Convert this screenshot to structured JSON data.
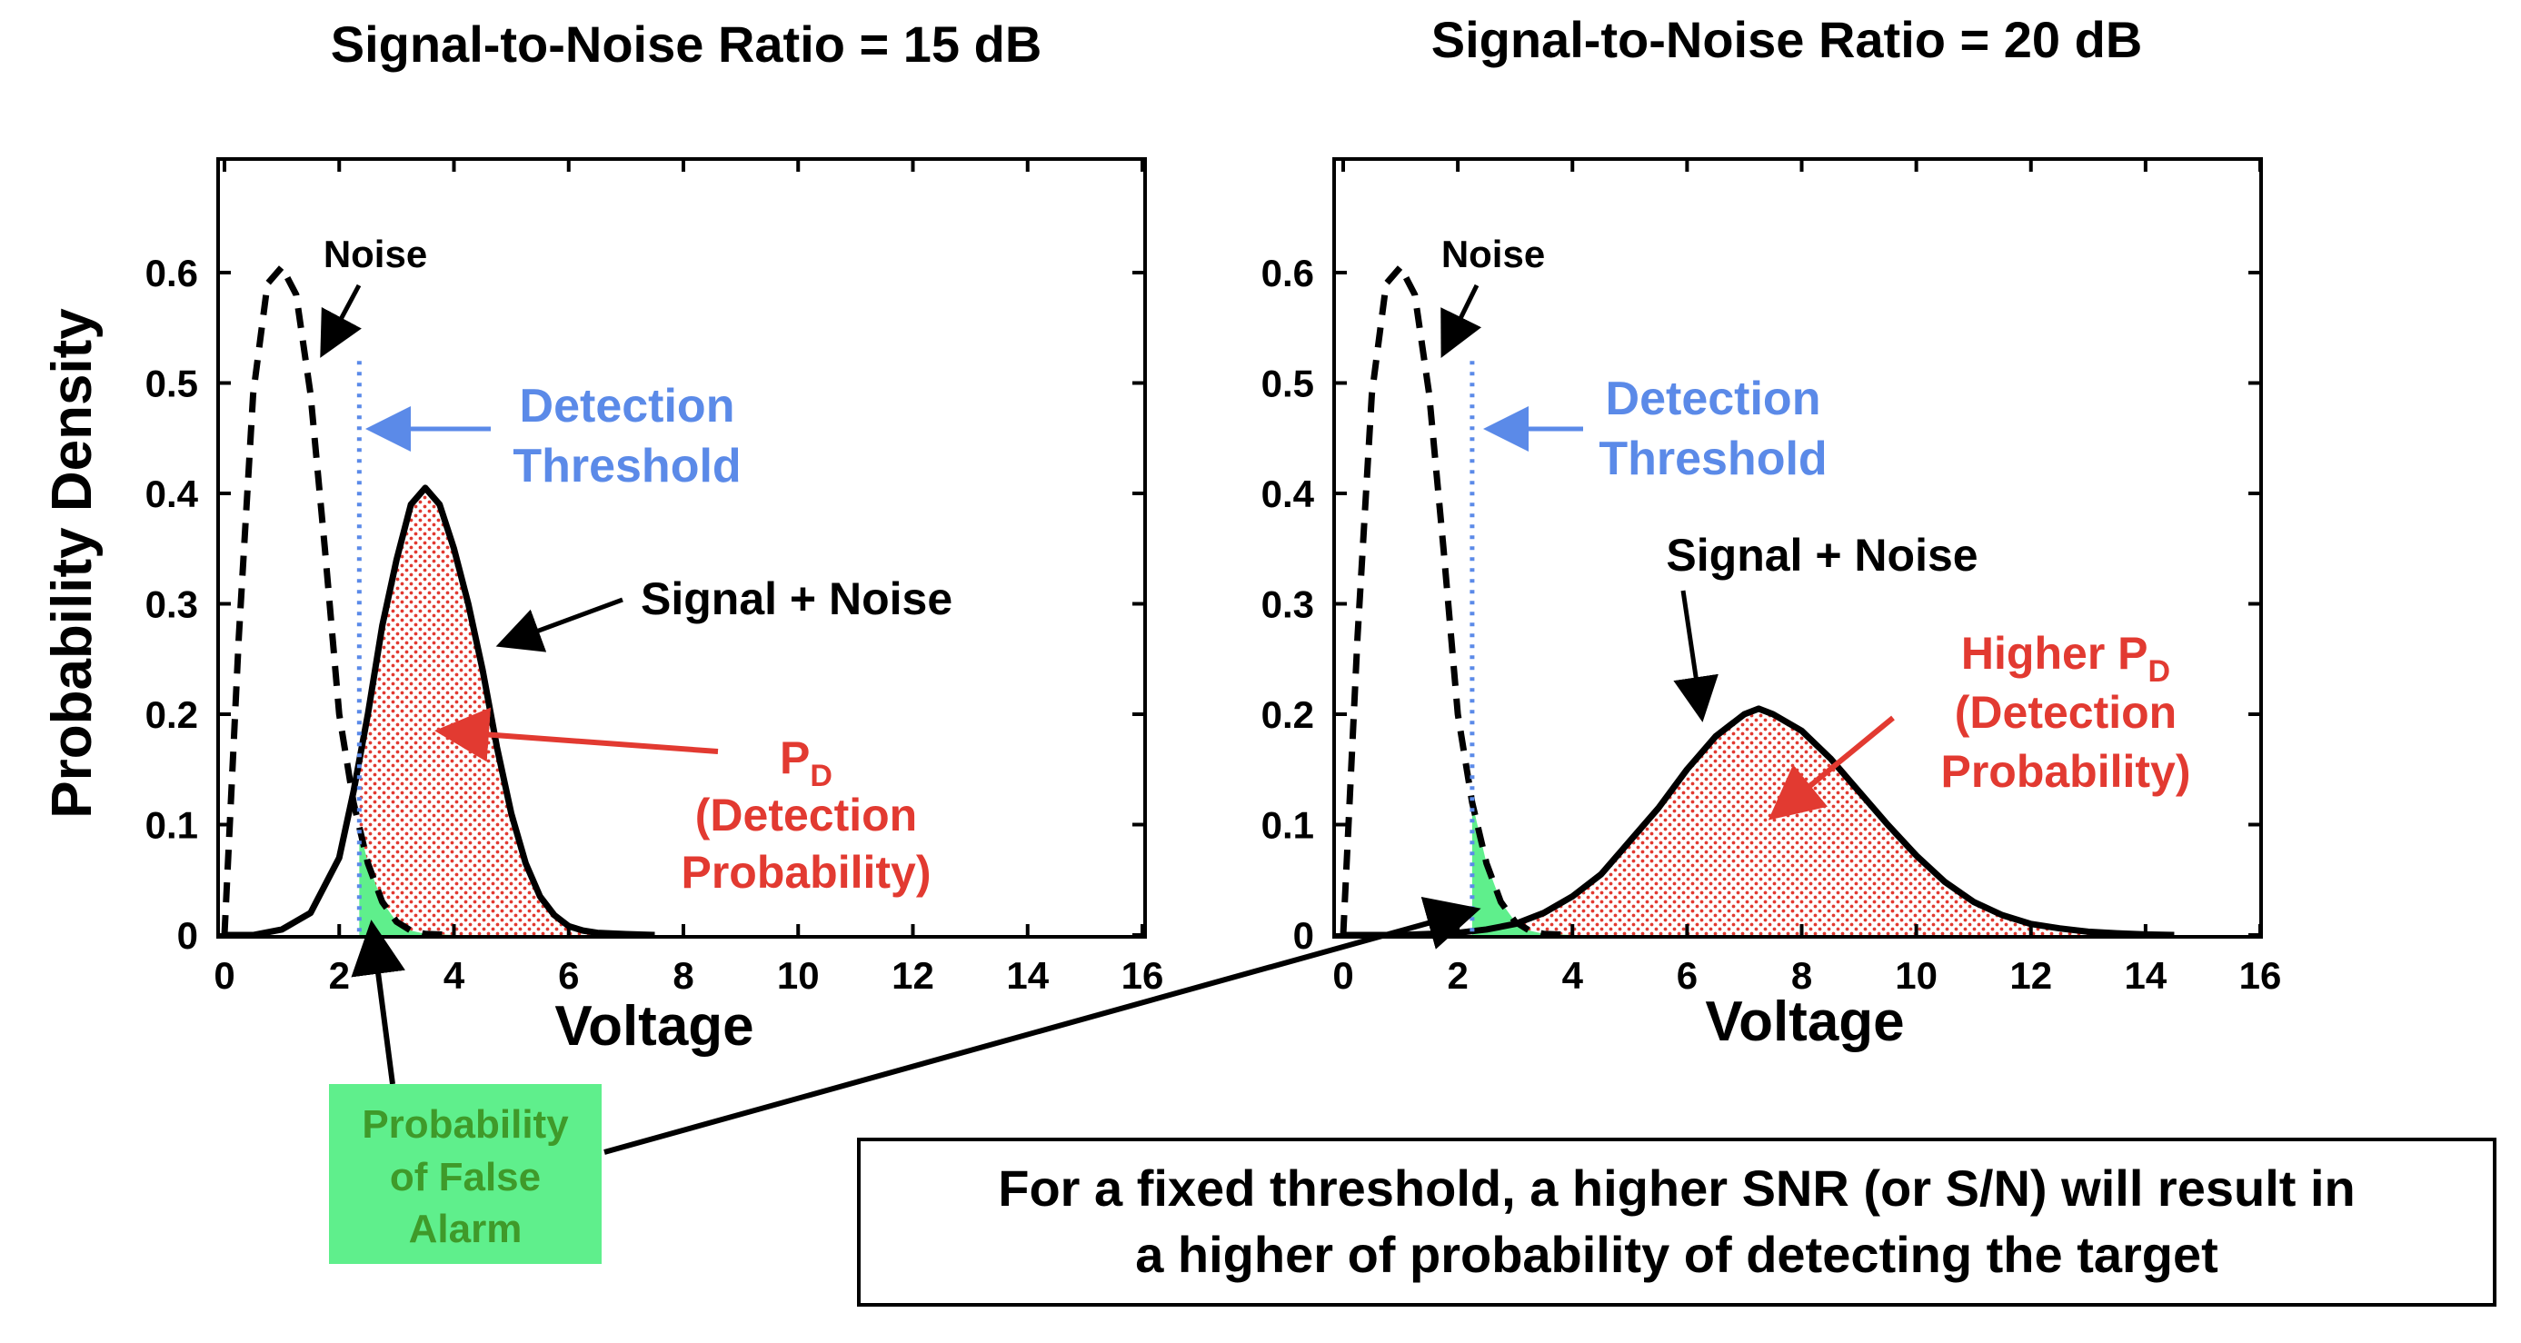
{
  "colors": {
    "noise": "#000000",
    "signal": "#000000",
    "threshold": "#5b8ae8",
    "threshold_text": "#5b8ae8",
    "pd_text": "#e23a31",
    "pd_fill_dot": "#e23a31",
    "pfa_fill": "#5fef8c",
    "pfa_text": "#3f9a2a"
  },
  "shared": {
    "ylabel": "Probability Density",
    "pfa_label": [
      "Probability",
      "of False",
      "Alarm"
    ],
    "statement": [
      "For a fixed threshold, a higher SNR (or S/N) will result in",
      "a higher of probability of detecting the target"
    ]
  },
  "chart_data": [
    {
      "type": "line",
      "title": "Signal-to-Noise Ratio = 15 dB",
      "xlabel": "Voltage",
      "ylabel": "Probability Density",
      "xlim": [
        0,
        16
      ],
      "ylim": [
        0,
        0.6
      ],
      "xticks": [
        "0",
        "2",
        "4",
        "6",
        "8",
        "10",
        "12",
        "14",
        "16"
      ],
      "yticks": [
        "0",
        "0.1",
        "0.2",
        "0.3",
        "0.4",
        "0.5",
        "0.6"
      ],
      "threshold": 2.35,
      "series": [
        {
          "name": "Noise",
          "style": "dashed",
          "x": [
            0,
            0.25,
            0.5,
            0.75,
            1.0,
            1.25,
            1.5,
            1.75,
            2.0,
            2.25,
            2.5,
            2.75,
            3.0,
            3.25,
            3.5,
            4.0
          ],
          "y": [
            0,
            0.27,
            0.49,
            0.59,
            0.605,
            0.58,
            0.49,
            0.35,
            0.2,
            0.12,
            0.065,
            0.03,
            0.012,
            0.004,
            0.001,
            0
          ]
        },
        {
          "name": "Signal + Noise",
          "style": "solid",
          "x": [
            0,
            0.5,
            1.0,
            1.5,
            2.0,
            2.25,
            2.5,
            2.75,
            3.0,
            3.25,
            3.5,
            3.75,
            4.0,
            4.25,
            4.5,
            4.75,
            5.0,
            5.25,
            5.5,
            5.75,
            6.0,
            6.25,
            6.5,
            7.0,
            7.5
          ],
          "y": [
            0,
            0.0,
            0.005,
            0.02,
            0.07,
            0.13,
            0.2,
            0.28,
            0.34,
            0.39,
            0.405,
            0.39,
            0.35,
            0.3,
            0.24,
            0.17,
            0.11,
            0.065,
            0.035,
            0.018,
            0.008,
            0.004,
            0.002,
            0.0008,
            0
          ]
        }
      ],
      "annotations": {
        "noise": "Noise",
        "threshold": [
          "Detection",
          "Threshold"
        ],
        "signal": "Signal + Noise",
        "pd_main": "P",
        "pd_sub": "D",
        "pd_rest": [
          "(Detection",
          "Probability)"
        ]
      }
    },
    {
      "type": "line",
      "title": "Signal-to-Noise Ratio = 20 dB",
      "xlabel": "Voltage",
      "ylabel": "",
      "xlim": [
        0,
        16
      ],
      "ylim": [
        0,
        0.6
      ],
      "xticks": [
        "0",
        "2",
        "4",
        "6",
        "8",
        "10",
        "12",
        "14",
        "16"
      ],
      "yticks": [
        "0",
        "0.1",
        "0.2",
        "0.3",
        "0.4",
        "0.5",
        "0.6"
      ],
      "threshold": 2.25,
      "series": [
        {
          "name": "Noise",
          "style": "dashed",
          "x": [
            0,
            0.25,
            0.5,
            0.75,
            1.0,
            1.25,
            1.5,
            1.75,
            2.0,
            2.25,
            2.5,
            2.75,
            3.0,
            3.25,
            3.5,
            4.0
          ],
          "y": [
            0,
            0.27,
            0.49,
            0.59,
            0.605,
            0.58,
            0.49,
            0.35,
            0.2,
            0.12,
            0.065,
            0.03,
            0.012,
            0.004,
            0.001,
            0
          ]
        },
        {
          "name": "Signal + Noise",
          "style": "solid",
          "x": [
            0,
            1,
            2,
            2.5,
            3,
            3.5,
            4,
            4.5,
            5,
            5.5,
            6,
            6.5,
            7,
            7.25,
            7.5,
            8,
            8.5,
            9,
            9.5,
            10,
            10.5,
            11,
            11.5,
            12,
            12.5,
            13,
            13.5,
            14,
            14.5
          ],
          "y": [
            0,
            0.0,
            0.002,
            0.005,
            0.01,
            0.02,
            0.035,
            0.055,
            0.085,
            0.115,
            0.15,
            0.18,
            0.2,
            0.205,
            0.2,
            0.185,
            0.16,
            0.13,
            0.1,
            0.072,
            0.048,
            0.03,
            0.018,
            0.01,
            0.006,
            0.003,
            0.0015,
            0.0005,
            0
          ]
        }
      ],
      "annotations": {
        "noise": "Noise",
        "threshold": [
          "Detection",
          "Threshold"
        ],
        "signal": "Signal + Noise",
        "pd_main": "Higher P",
        "pd_sub": "D",
        "pd_rest": [
          "(Detection",
          "Probability)"
        ]
      }
    }
  ]
}
